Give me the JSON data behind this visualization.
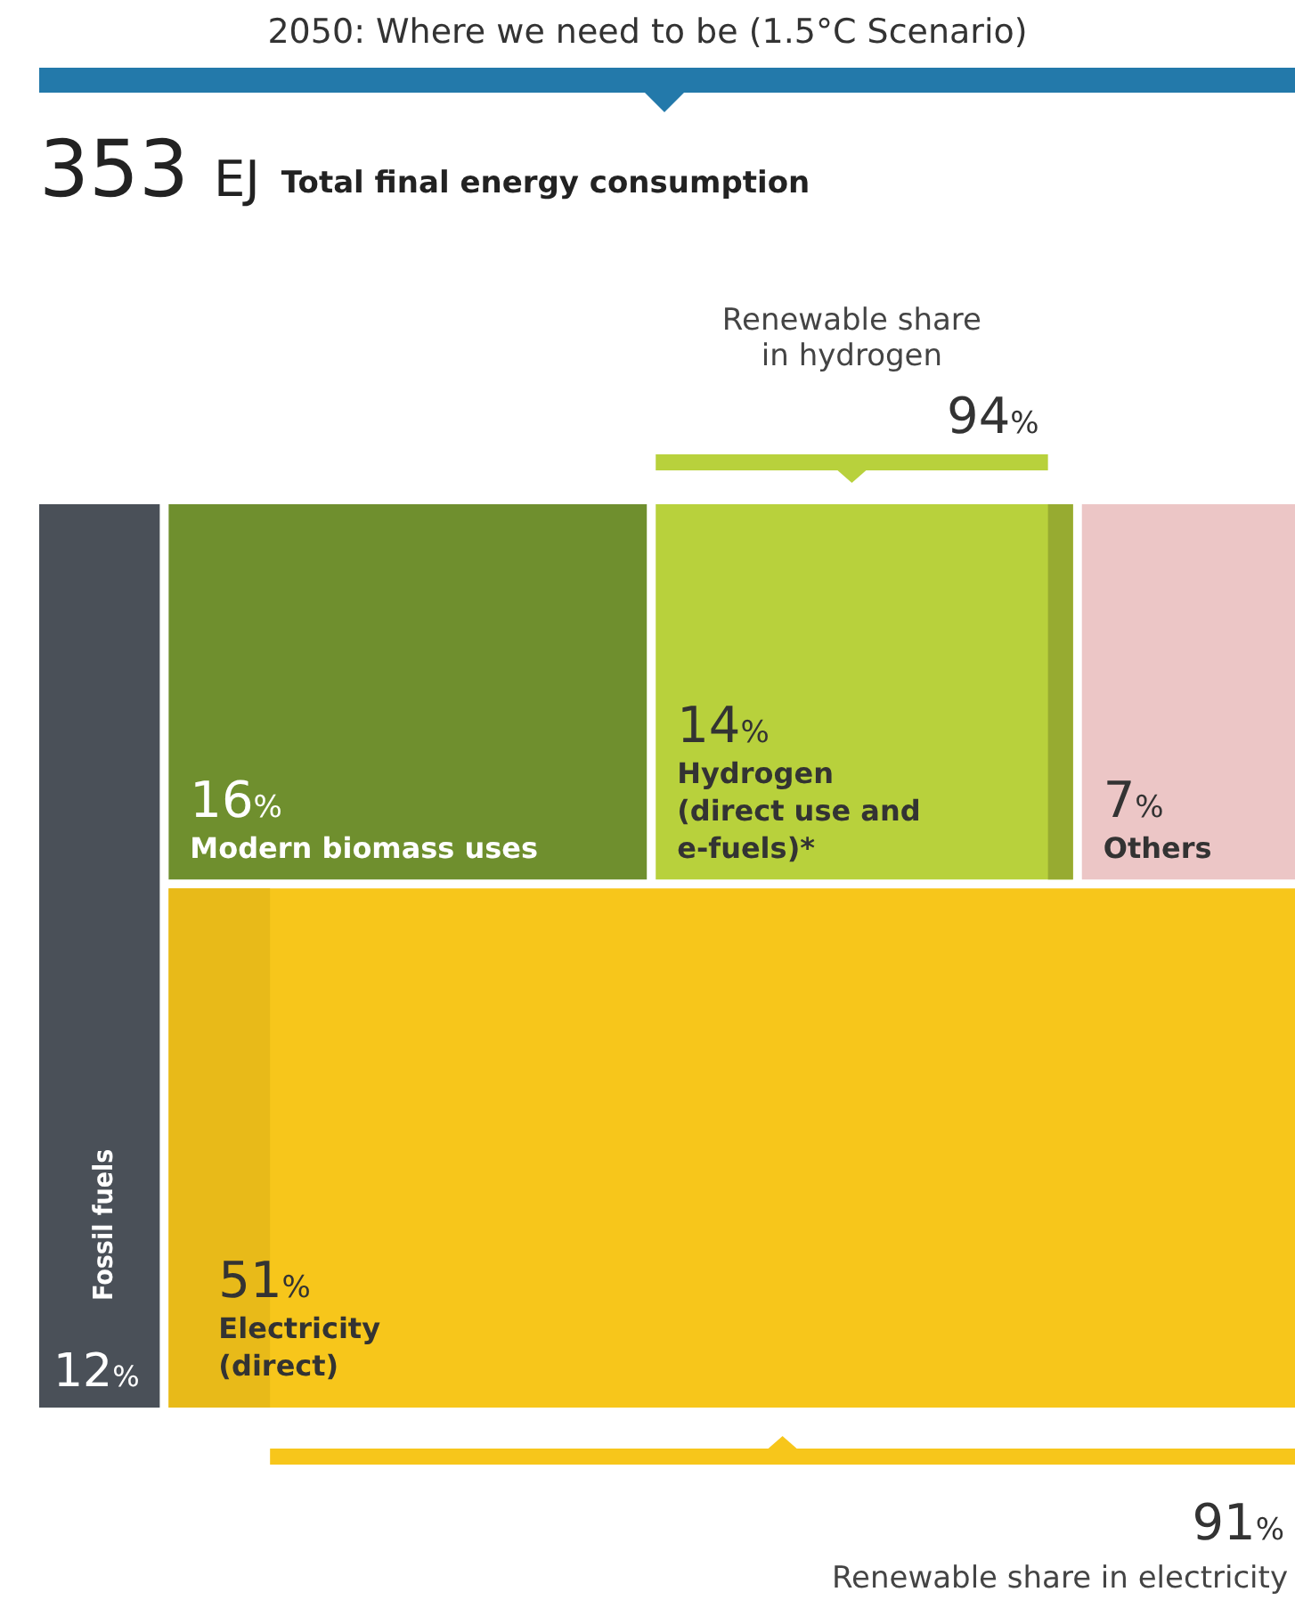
{
  "chart_data": {
    "type": "other",
    "title": "2050: Where we need to be (1.5°C Scenario)",
    "subtitle": "353 EJ",
    "categories": [
      "Fossil fuels",
      "Modern biomass uses",
      "Hydrogen (direct use and e-fuels)*",
      "Others",
      "Electricity (direct)"
    ],
    "values": [
      12,
      16,
      14,
      7,
      51
    ],
    "value_labels": [
      "12%",
      "16%",
      "14%",
      "7%",
      "51%"
    ],
    "colors": [
      "#4a5058",
      "#6f8f2e",
      "#b8d13c",
      "#ecc6c6",
      "#f7c61b"
    ],
    "annotations": [
      "Total final energy consumption",
      "Renewable share",
      "in hydrogen",
      {
        "text": "94%",
        "x": "Hydrogen (direct use and e-fuels)*"
      },
      {
        "text": "91%",
        "x": "Electricity (direct)"
      },
      "Renewable share in electricity"
    ]
  }
}
